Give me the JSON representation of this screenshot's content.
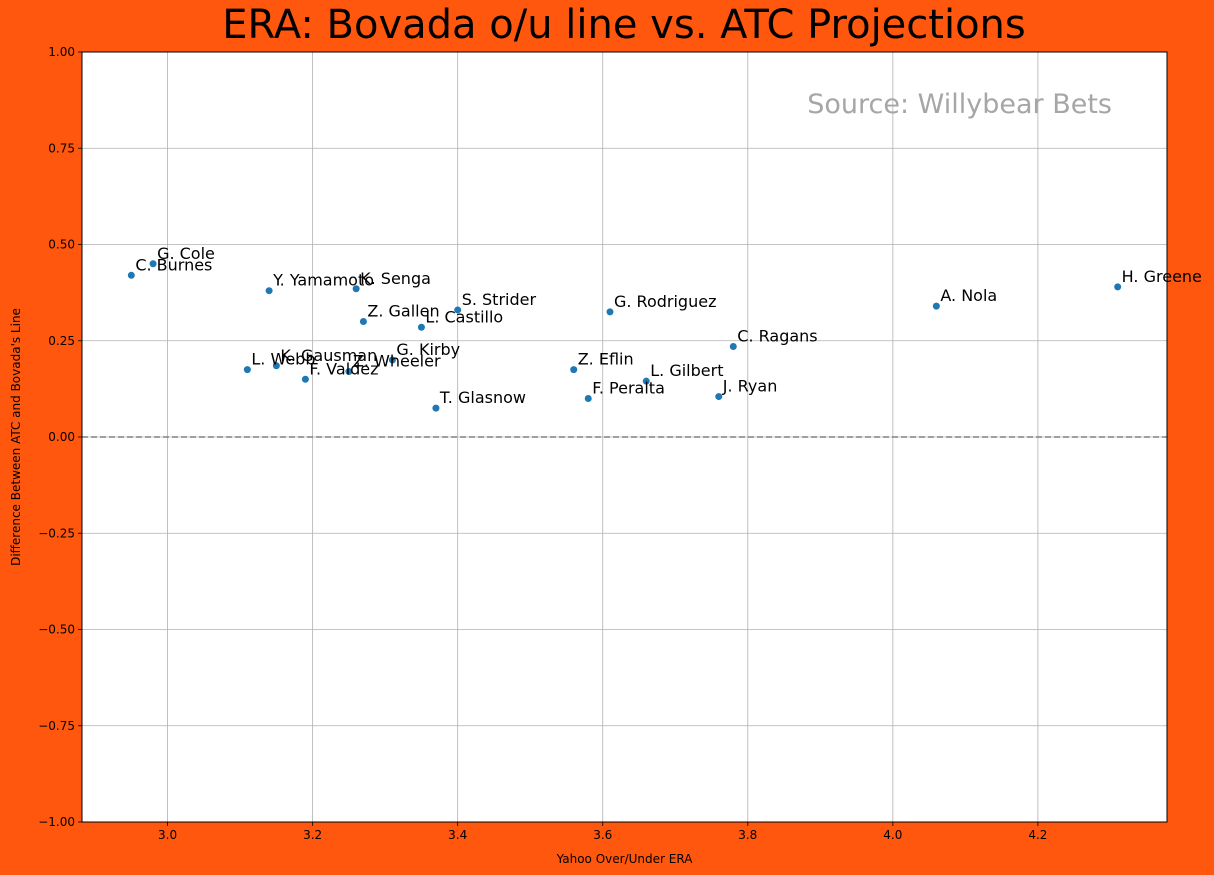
{
  "chart_data": {
    "type": "scatter",
    "title": "ERA: Bovada o/u line vs. ATC Projections",
    "xlabel": "Yahoo Over/Under ERA",
    "ylabel": "Difference Between ATC and Bovada's Line",
    "annotation": "Source: Willybear Bets",
    "xlim": [
      2.882,
      4.378
    ],
    "ylim": [
      -1.0,
      1.0
    ],
    "xticks": [
      3.0,
      3.2,
      3.4,
      3.6,
      3.8,
      4.0,
      4.2
    ],
    "xtick_labels": [
      "3.0",
      "3.2",
      "3.4",
      "3.6",
      "3.8",
      "4.0",
      "4.2"
    ],
    "yticks": [
      -1.0,
      -0.75,
      -0.5,
      -0.25,
      0.0,
      0.25,
      0.5,
      0.75,
      1.0
    ],
    "ytick_labels": [
      "−1.00",
      "−0.75",
      "−0.50",
      "−0.25",
      "0.00",
      "0.25",
      "0.50",
      "0.75",
      "1.00"
    ],
    "grid": true,
    "reference_line": {
      "y": 0.0,
      "style": "dashed",
      "color": "#808080"
    },
    "point_color": "#1f77b4",
    "background_color": "#ff570d",
    "points": [
      {
        "label": "G. Cole",
        "x": 2.98,
        "y": 0.45
      },
      {
        "label": "C. Burnes",
        "x": 2.95,
        "y": 0.42
      },
      {
        "label": "Y. Yamamoto",
        "x": 3.14,
        "y": 0.38
      },
      {
        "label": "K. Senga",
        "x": 3.26,
        "y": 0.385
      },
      {
        "label": "Z. Gallen",
        "x": 3.27,
        "y": 0.3
      },
      {
        "label": "L. Castillo",
        "x": 3.35,
        "y": 0.285
      },
      {
        "label": "S. Strider",
        "x": 3.4,
        "y": 0.33
      },
      {
        "label": "G. Rodriguez",
        "x": 3.61,
        "y": 0.325
      },
      {
        "label": "A. Nola",
        "x": 4.06,
        "y": 0.34
      },
      {
        "label": "H. Greene",
        "x": 4.31,
        "y": 0.39
      },
      {
        "label": "C. Ragans",
        "x": 3.78,
        "y": 0.235
      },
      {
        "label": "L. Webb",
        "x": 3.11,
        "y": 0.175
      },
      {
        "label": "K. Gausman",
        "x": 3.15,
        "y": 0.185
      },
      {
        "label": "F. Valdez",
        "x": 3.19,
        "y": 0.15
      },
      {
        "label": "Z. Wheeler",
        "x": 3.25,
        "y": 0.17
      },
      {
        "label": "G. Kirby",
        "x": 3.31,
        "y": 0.2
      },
      {
        "label": "T. Glasnow",
        "x": 3.37,
        "y": 0.075
      },
      {
        "label": "Z. Eflin",
        "x": 3.56,
        "y": 0.175
      },
      {
        "label": "F. Peralta",
        "x": 3.58,
        "y": 0.1
      },
      {
        "label": "L. Gilbert",
        "x": 3.66,
        "y": 0.145
      },
      {
        "label": "J. Ryan",
        "x": 3.76,
        "y": 0.105
      }
    ]
  }
}
